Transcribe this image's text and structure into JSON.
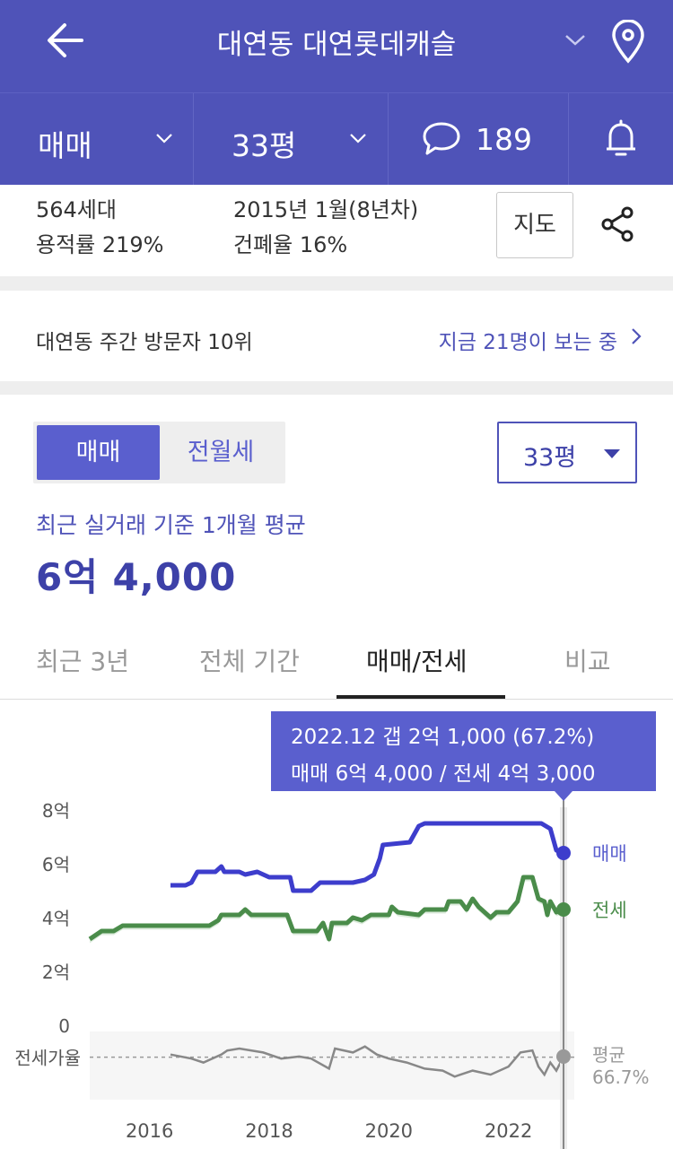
{
  "header": {
    "title": "대연동 대연롯데캐슬",
    "colors": {
      "primary": "#4f53b8",
      "accent": "#5a5fce"
    },
    "icons": {
      "back": "arrow-left-icon",
      "dropdown": "chevron-down-icon",
      "location": "map-pin-icon"
    }
  },
  "filters": {
    "deal_type": "매매",
    "size": "33평",
    "comments_count": "189",
    "icons": {
      "comments": "speech-bubble-icon",
      "notify": "bell-icon"
    }
  },
  "summary": {
    "households": "564세대",
    "built": "2015년 1월(8년차)",
    "floor_area_ratio": "용적률 219%",
    "coverage_ratio": "건폐율 16%",
    "map_button": "지도",
    "share_icon": "share-icon"
  },
  "visitor": {
    "rank_text": "대연동 주간 방문자 10위",
    "viewers_text": "지금 21명이 보는 중"
  },
  "price_section": {
    "segments": [
      "매매",
      "전월세"
    ],
    "selected_segment": "매매",
    "size_select": "33평",
    "avg_label": "최근 실거래 기준 1개월 평균",
    "avg_value": "6억 4,000"
  },
  "tabs": [
    {
      "label": "최근 3년",
      "active": false
    },
    {
      "label": "전체 기간",
      "active": false
    },
    {
      "label": "매매/전세",
      "active": true
    },
    {
      "label": "비교",
      "active": false
    }
  ],
  "tooltip": {
    "line1": "2022.12  갭 2억 1,000 (67.2%)",
    "line2": "매매 6억 4,000 / 전세 4억 3,000"
  },
  "chart_data": {
    "type": "line",
    "y_ticks": [
      "8억",
      "6억",
      "4억",
      "2억",
      "0"
    ],
    "ylim": [
      0,
      8
    ],
    "x_ticks": [
      {
        "label": "2016",
        "x": 2016
      },
      {
        "label": "2018",
        "x": 2018
      },
      {
        "label": "2020",
        "x": 2020
      },
      {
        "label": "2022",
        "x": 2022
      }
    ],
    "xlim": [
      2015.0,
      2023.1
    ],
    "cursor_x": 2022.92,
    "series": [
      {
        "name": "매매",
        "color": "#3d3dcc",
        "end_value": 6.4,
        "points": [
          [
            2016.35,
            5.2
          ],
          [
            2016.6,
            5.2
          ],
          [
            2016.7,
            5.3
          ],
          [
            2016.8,
            5.7
          ],
          [
            2017.1,
            5.7
          ],
          [
            2017.2,
            5.9
          ],
          [
            2017.25,
            5.7
          ],
          [
            2017.5,
            5.7
          ],
          [
            2017.6,
            5.6
          ],
          [
            2017.8,
            5.7
          ],
          [
            2018.0,
            5.5
          ],
          [
            2018.35,
            5.5
          ],
          [
            2018.4,
            5.0
          ],
          [
            2018.7,
            5.0
          ],
          [
            2018.85,
            5.3
          ],
          [
            2019.1,
            5.3
          ],
          [
            2019.4,
            5.3
          ],
          [
            2019.6,
            5.4
          ],
          [
            2019.75,
            5.6
          ],
          [
            2019.85,
            6.2
          ],
          [
            2019.9,
            6.7
          ],
          [
            2020.35,
            6.8
          ],
          [
            2020.5,
            7.4
          ],
          [
            2020.6,
            7.5
          ],
          [
            2021.0,
            7.5
          ],
          [
            2022.55,
            7.5
          ],
          [
            2022.7,
            7.3
          ],
          [
            2022.8,
            6.5
          ],
          [
            2022.92,
            6.4
          ]
        ]
      },
      {
        "name": "전세",
        "color": "#4a8c4a",
        "end_value": 4.3,
        "points": [
          [
            2015.0,
            3.2
          ],
          [
            2015.2,
            3.5
          ],
          [
            2015.4,
            3.5
          ],
          [
            2015.55,
            3.7
          ],
          [
            2016.5,
            3.7
          ],
          [
            2017.0,
            3.7
          ],
          [
            2017.15,
            3.9
          ],
          [
            2017.2,
            4.1
          ],
          [
            2017.5,
            4.1
          ],
          [
            2017.6,
            4.3
          ],
          [
            2017.7,
            4.1
          ],
          [
            2018.0,
            4.1
          ],
          [
            2018.3,
            4.1
          ],
          [
            2018.4,
            3.5
          ],
          [
            2018.8,
            3.5
          ],
          [
            2018.9,
            3.8
          ],
          [
            2019.0,
            3.2
          ],
          [
            2019.05,
            3.8
          ],
          [
            2019.3,
            3.8
          ],
          [
            2019.4,
            4.0
          ],
          [
            2019.55,
            3.9
          ],
          [
            2019.7,
            4.1
          ],
          [
            2020.0,
            4.1
          ],
          [
            2020.05,
            4.4
          ],
          [
            2020.15,
            4.2
          ],
          [
            2020.5,
            4.1
          ],
          [
            2020.6,
            4.3
          ],
          [
            2020.95,
            4.3
          ],
          [
            2021.0,
            4.6
          ],
          [
            2021.2,
            4.6
          ],
          [
            2021.3,
            4.3
          ],
          [
            2021.4,
            4.7
          ],
          [
            2021.5,
            4.4
          ],
          [
            2021.6,
            4.2
          ],
          [
            2021.7,
            4.0
          ],
          [
            2021.8,
            4.2
          ],
          [
            2022.0,
            4.2
          ],
          [
            2022.15,
            4.6
          ],
          [
            2022.25,
            5.5
          ],
          [
            2022.4,
            5.5
          ],
          [
            2022.5,
            4.7
          ],
          [
            2022.6,
            4.6
          ],
          [
            2022.65,
            4.1
          ],
          [
            2022.7,
            4.6
          ],
          [
            2022.8,
            4.2
          ],
          [
            2022.92,
            4.3
          ]
        ]
      }
    ],
    "ratio": {
      "label": "전세가율",
      "avg_label": "평균",
      "avg_value": "66.7%",
      "avg": 66.7,
      "color": "#888888",
      "points": [
        [
          2016.35,
          68
        ],
        [
          2016.7,
          66
        ],
        [
          2016.9,
          64
        ],
        [
          2017.2,
          68
        ],
        [
          2017.3,
          70
        ],
        [
          2017.5,
          71
        ],
        [
          2017.9,
          69
        ],
        [
          2018.2,
          66
        ],
        [
          2018.5,
          67
        ],
        [
          2018.7,
          66
        ],
        [
          2019.0,
          61
        ],
        [
          2019.1,
          71
        ],
        [
          2019.4,
          69
        ],
        [
          2019.6,
          72
        ],
        [
          2019.8,
          68
        ],
        [
          2020.0,
          66
        ],
        [
          2020.3,
          64
        ],
        [
          2020.6,
          61
        ],
        [
          2020.9,
          60
        ],
        [
          2021.1,
          57
        ],
        [
          2021.4,
          60
        ],
        [
          2021.7,
          58
        ],
        [
          2022.0,
          62
        ],
        [
          2022.2,
          69
        ],
        [
          2022.4,
          70
        ],
        [
          2022.5,
          62
        ],
        [
          2022.6,
          58
        ],
        [
          2022.7,
          64
        ],
        [
          2022.8,
          60
        ],
        [
          2022.92,
          67
        ]
      ]
    },
    "legend": [
      "매매",
      "전세"
    ],
    "grid": false
  }
}
